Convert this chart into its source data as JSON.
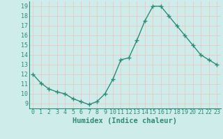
{
  "x": [
    0,
    1,
    2,
    3,
    4,
    5,
    6,
    7,
    8,
    9,
    10,
    11,
    12,
    13,
    14,
    15,
    16,
    17,
    18,
    19,
    20,
    21,
    22,
    23
  ],
  "y": [
    12.0,
    11.1,
    10.5,
    10.2,
    10.0,
    9.5,
    9.2,
    8.9,
    9.2,
    10.0,
    11.5,
    13.5,
    13.7,
    15.5,
    17.5,
    19.0,
    19.0,
    18.0,
    17.0,
    16.0,
    15.0,
    14.0,
    13.5,
    13.0
  ],
  "line_color": "#2e8b74",
  "marker": "+",
  "marker_size": 4,
  "linewidth": 1.0,
  "xlabel": "Humidex (Indice chaleur)",
  "xlim": [
    -0.5,
    23.5
  ],
  "ylim": [
    8.5,
    19.5
  ],
  "yticks": [
    9,
    10,
    11,
    12,
    13,
    14,
    15,
    16,
    17,
    18,
    19
  ],
  "xticks": [
    0,
    1,
    2,
    3,
    4,
    5,
    6,
    7,
    8,
    9,
    10,
    11,
    12,
    13,
    14,
    15,
    16,
    17,
    18,
    19,
    20,
    21,
    22,
    23
  ],
  "bg_color": "#ceecea",
  "grid_color": "#e8c8c8",
  "tick_label_fontsize": 6.0,
  "xlabel_fontsize": 7.5
}
